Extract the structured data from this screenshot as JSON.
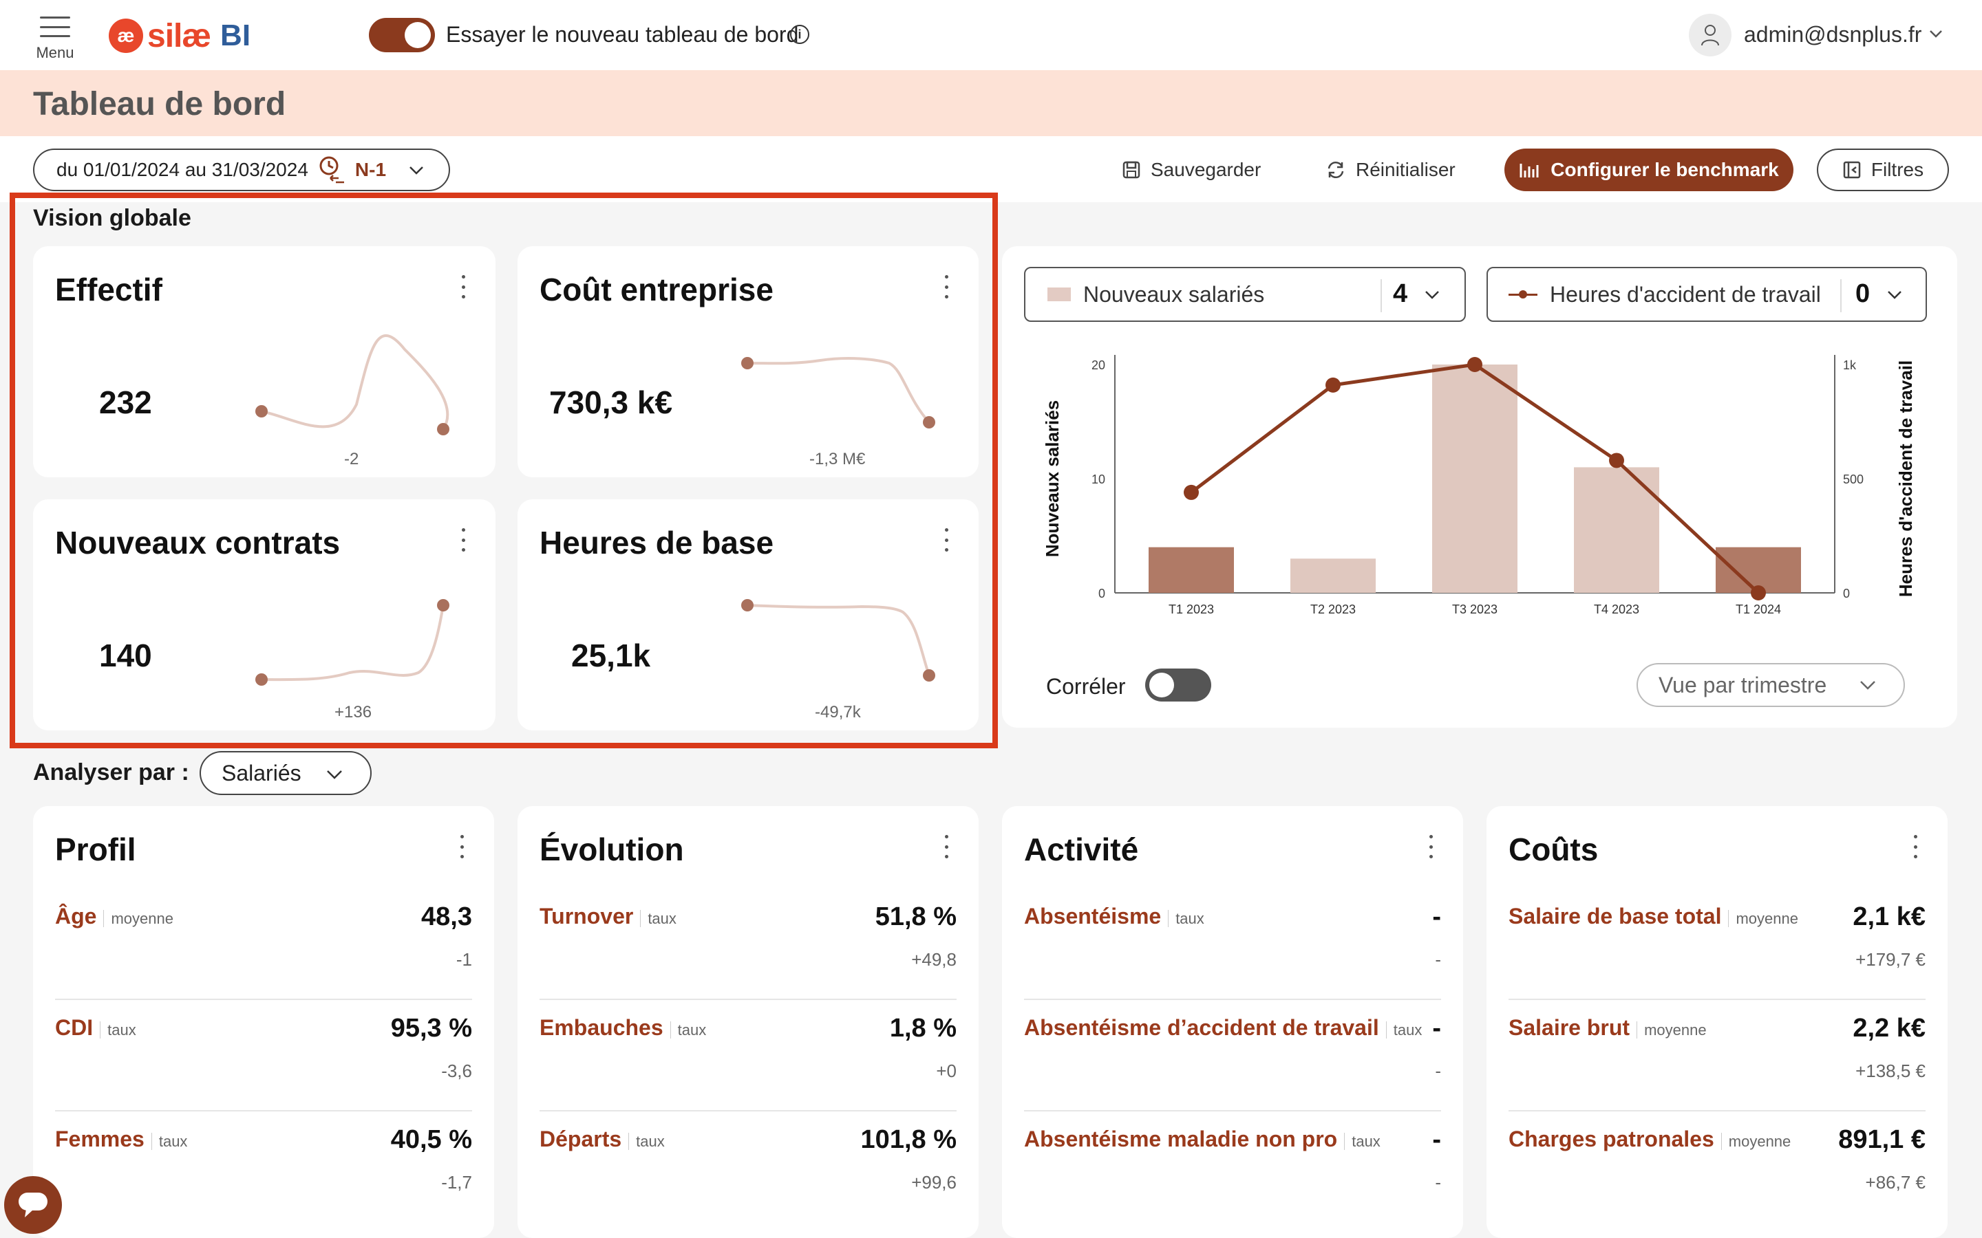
{
  "topbar": {
    "menu_label": "Menu",
    "logo_mark": "æ",
    "logo_text": "silæ",
    "logo_suffix": "BI",
    "new_dashboard_label": "Essayer le nouveau tableau de bord",
    "new_dashboard_enabled": true,
    "info_glyph": "i",
    "user_email": "admin@dsnplus.fr"
  },
  "page": {
    "title": "Tableau de bord"
  },
  "toolbar": {
    "date_range": "du 01/01/2024 au 31/03/2024",
    "comparison": "N-1",
    "save_label": "Sauvegarder",
    "reset_label": "Réinitialiser",
    "benchmark_label": "Configurer le benchmark",
    "filters_label": "Filtres"
  },
  "vision_globale": {
    "title": "Vision globale",
    "kpis": [
      {
        "title": "Effectif",
        "value": "232",
        "delta": "-2"
      },
      {
        "title": "Coût entreprise",
        "value": "730,3 k€",
        "delta": "-1,3 M€"
      },
      {
        "title": "Nouveaux contrats",
        "value": "140",
        "delta": "+136"
      },
      {
        "title": "Heures de base",
        "value": "25,1k",
        "delta": "-49,7k"
      }
    ]
  },
  "chart_panel": {
    "select_bar": {
      "label": "Nouveaux salariés",
      "value": "4"
    },
    "select_line": {
      "label": "Heures d'accident de travail",
      "value": "0"
    },
    "correler_label": "Corréler",
    "correler_enabled": false,
    "view_select": "Vue par trimestre"
  },
  "chart_data": {
    "type": "bar",
    "categories": [
      "T1 2023",
      "T2 2023",
      "T3 2023",
      "T4 2023",
      "T1 2024"
    ],
    "series": [
      {
        "name": "Nouveaux salariés",
        "type": "bar",
        "axis": "left",
        "values": [
          4,
          3,
          20,
          11,
          4
        ],
        "highlighted": [
          true,
          false,
          false,
          false,
          true
        ]
      },
      {
        "name": "Heures d'accident de travail",
        "type": "line",
        "axis": "right",
        "values": [
          440,
          910,
          1000,
          580,
          0
        ]
      }
    ],
    "ylabel": "Nouveaux salariés",
    "y2label": "Heures d'accident de travail",
    "ylim": [
      0,
      20
    ],
    "y2lim": [
      0,
      1000
    ],
    "yticks": [
      "0",
      "10",
      "20"
    ],
    "y2ticks": [
      "0",
      "500",
      "1k"
    ],
    "colors": {
      "bar": "#e0c8bf",
      "bar_highlight": "#b07a66",
      "line": "#8b3a1e"
    }
  },
  "analyser": {
    "label": "Analyser par :",
    "value": "Salariés"
  },
  "cards": [
    {
      "title": "Profil",
      "metrics": [
        {
          "name": "Âge",
          "unit": "moyenne",
          "value": "48,3",
          "delta": "-1"
        },
        {
          "name": "CDI",
          "unit": "taux",
          "value": "95,3 %",
          "delta": "-3,6"
        },
        {
          "name": "Femmes",
          "unit": "taux",
          "value": "40,5 %",
          "delta": "-1,7"
        }
      ]
    },
    {
      "title": "Évolution",
      "metrics": [
        {
          "name": "Turnover",
          "unit": "taux",
          "value": "51,8 %",
          "delta": "+49,8"
        },
        {
          "name": "Embauches",
          "unit": "taux",
          "value": "1,8 %",
          "delta": "+0"
        },
        {
          "name": "Départs",
          "unit": "taux",
          "value": "101,8 %",
          "delta": "+99,6"
        }
      ]
    },
    {
      "title": "Activité",
      "metrics": [
        {
          "name": "Absentéisme",
          "unit": "taux",
          "value": "-",
          "delta": "-"
        },
        {
          "name": "Absentéisme d’accident de travail",
          "unit": "taux",
          "value": "-",
          "delta": "-"
        },
        {
          "name": "Absentéisme maladie non pro",
          "unit": "taux",
          "value": "-",
          "delta": "-"
        }
      ]
    },
    {
      "title": "Coûts",
      "metrics": [
        {
          "name": "Salaire de base total",
          "unit": "moyenne",
          "value": "2,1 k€",
          "delta": "+179,7 €"
        },
        {
          "name": "Salaire brut",
          "unit": "moyenne",
          "value": "2,2 k€",
          "delta": "+138,5 €"
        },
        {
          "name": "Charges patronales",
          "unit": "moyenne",
          "value": "891,1 €",
          "delta": "+86,7 €"
        }
      ]
    }
  ],
  "colors": {
    "accent": "#8b3a1e",
    "title_band": "#fde2d6",
    "highlight_frame": "#d93a1a",
    "link": "#9a3a1c"
  }
}
